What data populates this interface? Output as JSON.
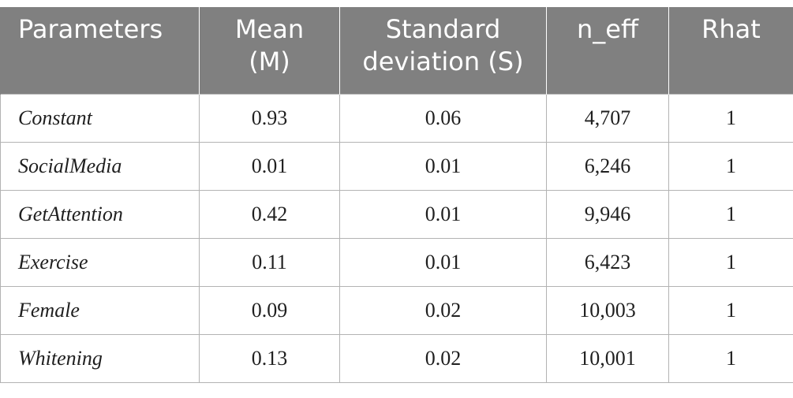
{
  "table": {
    "headers": [
      [
        "Parameters"
      ],
      [
        "Mean",
        "(M)"
      ],
      [
        "Standard",
        "deviation (S)"
      ],
      [
        "n_eff"
      ],
      [
        "Rhat"
      ]
    ],
    "rows": [
      [
        "Constant",
        "0.93",
        "0.06",
        "4,707",
        "1"
      ],
      [
        "SocialMedia",
        "0.01",
        "0.01",
        "6,246",
        "1"
      ],
      [
        "GetAttention",
        "0.42",
        "0.01",
        "9,946",
        "1"
      ],
      [
        "Exercise",
        "0.11",
        "0.01",
        "6,423",
        "1"
      ],
      [
        "Female",
        "0.09",
        "0.02",
        "10,003",
        "1"
      ],
      [
        "Whitening",
        "0.13",
        "0.02",
        "10,001",
        "1"
      ]
    ]
  },
  "colors": {
    "header_background": "#808080",
    "header_text": "#ffffff",
    "border": "#b3b3b3"
  }
}
